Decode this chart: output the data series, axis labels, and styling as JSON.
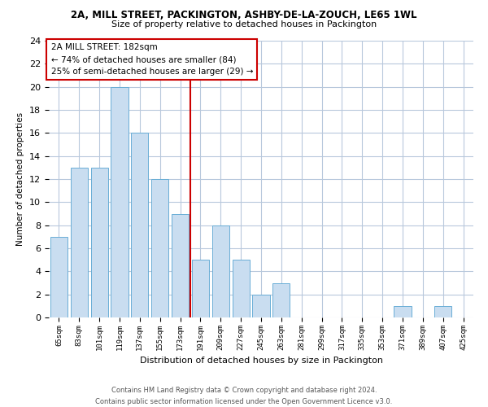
{
  "title_line1": "2A, MILL STREET, PACKINGTON, ASHBY-DE-LA-ZOUCH, LE65 1WL",
  "title_line2": "Size of property relative to detached houses in Packington",
  "xlabel": "Distribution of detached houses by size in Packington",
  "ylabel": "Number of detached properties",
  "bar_labels": [
    "65sqm",
    "83sqm",
    "101sqm",
    "119sqm",
    "137sqm",
    "155sqm",
    "173sqm",
    "191sqm",
    "209sqm",
    "227sqm",
    "245sqm",
    "263sqm",
    "281sqm",
    "299sqm",
    "317sqm",
    "335sqm",
    "353sqm",
    "371sqm",
    "389sqm",
    "407sqm",
    "425sqm"
  ],
  "bar_values": [
    7,
    13,
    13,
    20,
    16,
    12,
    9,
    5,
    8,
    5,
    2,
    3,
    0,
    0,
    0,
    0,
    0,
    1,
    0,
    1,
    0
  ],
  "bar_color": "#c9ddf0",
  "bar_edge_color": "#6aaed6",
  "background_color": "#ffffff",
  "grid_color": "#b8c8dc",
  "annotation_text": "2A MILL STREET: 182sqm\n← 74% of detached houses are smaller (84)\n25% of semi-detached houses are larger (29) →",
  "vline_color": "#cc0000",
  "annotation_box_color": "#cc0000",
  "ylim": [
    0,
    24
  ],
  "yticks": [
    0,
    2,
    4,
    6,
    8,
    10,
    12,
    14,
    16,
    18,
    20,
    22,
    24
  ],
  "footer_line1": "Contains HM Land Registry data © Crown copyright and database right 2024.",
  "footer_line2": "Contains public sector information licensed under the Open Government Licence v3.0."
}
